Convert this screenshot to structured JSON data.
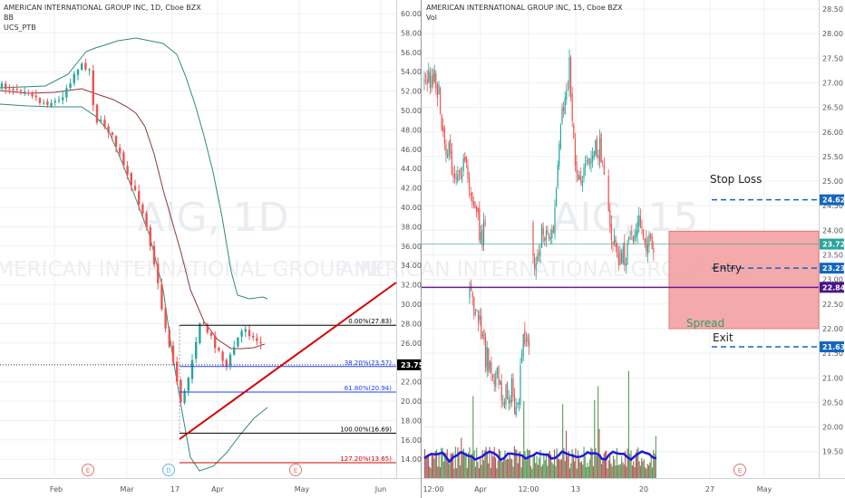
{
  "colors": {
    "up": "#26a69a",
    "down": "#ef5350",
    "bb_outer": "#2e8b7a",
    "bb_mid": "#8b3a3a",
    "trend": "#d50000",
    "vol_ma": "#1a1adb",
    "entry_line": "#6a1b9a",
    "spread_fill": "#f4a6a6",
    "tag_blue": "#1565c0",
    "tag_purple": "#4a148c",
    "tag_teal": "#26a69a",
    "tag_black": "#000000",
    "grid": "#eef0f3"
  },
  "left_chart": {
    "header": {
      "title": "AMERICAN INTERNATIONAL GROUP INC, 1D, Cboe BZX",
      "study1": "BB",
      "study2": "UCS_PTB"
    },
    "watermark": {
      "symbol": "AIG, 1D",
      "name": "AMERICAN INTERNATIONAL GROUP INC"
    },
    "price_axis": [
      "60.00",
      "58.00",
      "56.00",
      "54.00",
      "52.00",
      "50.00",
      "48.00",
      "46.00",
      "44.00",
      "42.00",
      "40.00",
      "38.00",
      "36.00",
      "34.00",
      "32.00",
      "30.00",
      "28.00",
      "26.00",
      "24.00",
      "22.00",
      "20.00",
      "18.00",
      "16.00",
      "14.00"
    ],
    "last_price": "23.75",
    "time_axis": [
      "Feb",
      "Mar",
      "17",
      "Apr",
      "May",
      "Jun"
    ],
    "events": [
      "E",
      "D",
      "E"
    ],
    "fib_levels": [
      {
        "label": "0.00%(27.83)",
        "price": 27.83,
        "color": "#000000"
      },
      {
        "label": "38.20%(23.57)",
        "price": 23.57,
        "color": "#1e3cff"
      },
      {
        "label": "61.80%(20.94)",
        "price": 20.94,
        "color": "#1e3cff"
      },
      {
        "label": "100.00%(16.69)",
        "price": 16.69,
        "color": "#000000"
      },
      {
        "label": "127.20%(13.65)",
        "price": 13.65,
        "color": "#d50000"
      }
    ]
  },
  "right_chart": {
    "header": {
      "title": "AMERICAN INTERNATIONAL GROUP INC, 15, Cboe BZX",
      "study1": "Vol"
    },
    "watermark": {
      "symbol": "AIG, 15",
      "name": "AMERICAN INTERNATIONAL GROUP INC"
    },
    "price_axis": [
      "28.50",
      "28.00",
      "27.50",
      "27.00",
      "26.50",
      "26.00",
      "25.50",
      "25.00",
      "24.50",
      "24.00",
      "23.50",
      "23.00",
      "22.50",
      "22.00",
      "21.50",
      "21.00",
      "20.50",
      "20.00",
      "19.50"
    ],
    "time_axis": [
      "12:00",
      "Apr",
      "12:00",
      "13",
      "20",
      "27",
      "May"
    ],
    "events": [
      "E"
    ],
    "tags": [
      {
        "value": "24.62",
        "kind": "blue"
      },
      {
        "value": "23.72",
        "kind": "teal"
      },
      {
        "value": "23.23",
        "kind": "blue"
      },
      {
        "value": "22.84",
        "kind": "purple"
      },
      {
        "value": "21.63",
        "kind": "blue"
      }
    ],
    "annotations": {
      "stop_loss": "Stop Loss",
      "entry": "Entry",
      "spread": "Spread",
      "exit": "Exit"
    }
  },
  "chart_data": [
    {
      "type": "candlestick",
      "title": "AMERICAN INTERNATIONAL GROUP INC, 1D, Cboe BZX",
      "interval": "1D",
      "ylim": [
        13,
        61
      ],
      "indicators": [
        "Bollinger Bands",
        "UCS_PTB"
      ],
      "fibonacci_retracement": [
        {
          "level": "0.00%",
          "price": 27.83
        },
        {
          "level": "38.20%",
          "price": 23.57
        },
        {
          "level": "61.80%",
          "price": 20.94
        },
        {
          "level": "100.00%",
          "price": 16.69
        },
        {
          "level": "127.20%",
          "price": 13.65
        }
      ],
      "last_price": 23.75,
      "trendline": [
        {
          "x": "Mar 18",
          "y": 16.5
        },
        {
          "x": "Jun",
          "y": 32.4
        }
      ]
    },
    {
      "type": "candlestick",
      "title": "AMERICAN INTERNATIONAL GROUP INC, 15, Cboe BZX",
      "interval": "15",
      "ylim": [
        19.2,
        28.6
      ],
      "indicators": [
        "Vol"
      ],
      "levels": {
        "stop_loss": 24.62,
        "last_price": 23.72,
        "entry": 23.23,
        "horizontal_line": 22.84,
        "exit": 21.63
      },
      "spread_zone": [
        22.0,
        23.98
      ]
    }
  ]
}
